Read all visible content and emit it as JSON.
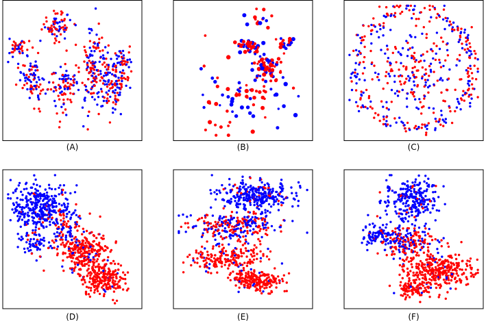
{
  "colors": {
    "series_a": "#ff0000",
    "series_b": "#0000ff"
  },
  "chart_data": [
    {
      "type": "scatter",
      "panel": "(A)",
      "caption": "(A)",
      "title": "",
      "xlabel": "",
      "ylabel": "",
      "grid": false,
      "axes_ticks": false,
      "xlim": [
        0,
        100
      ],
      "ylim": [
        0,
        100
      ],
      "layout": "clusters",
      "clusters": [
        {
          "cx": 38,
          "cy": 84,
          "rx": 10,
          "ry": 10,
          "n": 70,
          "mix": 0.55
        },
        {
          "cx": 8,
          "cy": 67,
          "rx": 7,
          "ry": 5,
          "n": 35,
          "mix": 0.5
        },
        {
          "cx": 20,
          "cy": 45,
          "rx": 10,
          "ry": 18,
          "n": 90,
          "mix": 0.5
        },
        {
          "cx": 42,
          "cy": 36,
          "rx": 9,
          "ry": 20,
          "n": 80,
          "mix": 0.5
        },
        {
          "cx": 66,
          "cy": 50,
          "rx": 13,
          "ry": 27,
          "n": 170,
          "mix": 0.5
        },
        {
          "cx": 82,
          "cy": 40,
          "rx": 8,
          "ry": 20,
          "n": 90,
          "mix": 0.5
        },
        {
          "cx": 88,
          "cy": 58,
          "rx": 6,
          "ry": 10,
          "n": 40,
          "mix": 0.5
        }
      ]
    },
    {
      "type": "scatter",
      "panel": "(B)",
      "caption": "(B)",
      "title": "",
      "xlabel": "",
      "ylabel": "",
      "grid": false,
      "axes_ticks": false,
      "xlim": [
        0,
        100
      ],
      "ylim": [
        0,
        100
      ],
      "layout": "clusters",
      "clusters": [
        {
          "cx": 68,
          "cy": 52,
          "rx": 11,
          "ry": 9,
          "n": 70,
          "mix": 0.6
        },
        {
          "cx": 55,
          "cy": 68,
          "rx": 9,
          "ry": 5,
          "n": 40,
          "mix": 0.6
        },
        {
          "cx": 82,
          "cy": 70,
          "rx": 8,
          "ry": 4,
          "n": 20,
          "mix": 0.6
        },
        {
          "cx": 50,
          "cy": 30,
          "rx": 34,
          "ry": 24,
          "n": 75,
          "mix": 0.55
        },
        {
          "cx": 60,
          "cy": 88,
          "rx": 10,
          "ry": 6,
          "n": 15,
          "mix": 0.6
        }
      ]
    },
    {
      "type": "scatter",
      "panel": "(C)",
      "caption": "(C)",
      "title": "",
      "xlabel": "",
      "ylabel": "",
      "grid": false,
      "axes_ticks": false,
      "xlim": [
        0,
        100
      ],
      "ylim": [
        0,
        100
      ],
      "layout": "ring",
      "ring": {
        "cx": 50,
        "cy": 52,
        "r": 45,
        "thickness": 3,
        "n": 260,
        "mix": 0.5
      },
      "clusters": [
        {
          "cx": 50,
          "cy": 48,
          "rx": 32,
          "ry": 32,
          "n": 230,
          "mix": 0.55
        }
      ]
    },
    {
      "type": "scatter",
      "panel": "(D)",
      "caption": "(D)",
      "title": "",
      "xlabel": "",
      "ylabel": "",
      "grid": false,
      "axes_ticks": false,
      "xlim": [
        0,
        100
      ],
      "ylim": [
        0,
        100
      ],
      "layout": "clusters",
      "clusters": [
        {
          "cx": 26,
          "cy": 74,
          "rx": 20,
          "ry": 18,
          "n": 360,
          "mix": 0.08
        },
        {
          "cx": 22,
          "cy": 46,
          "rx": 11,
          "ry": 8,
          "n": 60,
          "mix": 0.1
        },
        {
          "cx": 60,
          "cy": 40,
          "rx": 17,
          "ry": 15,
          "n": 260,
          "mix": 0.9
        },
        {
          "cx": 74,
          "cy": 20,
          "rx": 14,
          "ry": 12,
          "n": 220,
          "mix": 0.95
        },
        {
          "cx": 46,
          "cy": 56,
          "rx": 10,
          "ry": 14,
          "n": 90,
          "mix": 0.55
        }
      ]
    },
    {
      "type": "scatter",
      "panel": "(E)",
      "caption": "(E)",
      "title": "",
      "xlabel": "",
      "ylabel": "",
      "grid": false,
      "axes_ticks": false,
      "xlim": [
        0,
        100
      ],
      "ylim": [
        0,
        100
      ],
      "layout": "clusters",
      "clusters": [
        {
          "cx": 60,
          "cy": 84,
          "rx": 26,
          "ry": 9,
          "n": 300,
          "mix": 0.1
        },
        {
          "cx": 44,
          "cy": 60,
          "rx": 32,
          "ry": 10,
          "n": 280,
          "mix": 0.5
        },
        {
          "cx": 38,
          "cy": 36,
          "rx": 26,
          "ry": 10,
          "n": 200,
          "mix": 0.85
        },
        {
          "cx": 60,
          "cy": 18,
          "rx": 18,
          "ry": 8,
          "n": 200,
          "mix": 0.95
        }
      ]
    },
    {
      "type": "scatter",
      "panel": "(F)",
      "caption": "(F)",
      "title": "",
      "xlabel": "",
      "ylabel": "",
      "grid": false,
      "axes_ticks": false,
      "xlim": [
        0,
        100
      ],
      "ylim": [
        0,
        100
      ],
      "layout": "clusters",
      "clusters": [
        {
          "cx": 48,
          "cy": 80,
          "rx": 18,
          "ry": 14,
          "n": 260,
          "mix": 0.08
        },
        {
          "cx": 22,
          "cy": 54,
          "rx": 12,
          "ry": 8,
          "n": 80,
          "mix": 0.1
        },
        {
          "cx": 44,
          "cy": 48,
          "rx": 20,
          "ry": 10,
          "n": 200,
          "mix": 0.5
        },
        {
          "cx": 68,
          "cy": 26,
          "rx": 24,
          "ry": 12,
          "n": 330,
          "mix": 0.95
        },
        {
          "cx": 50,
          "cy": 12,
          "rx": 14,
          "ry": 6,
          "n": 90,
          "mix": 0.95
        }
      ]
    }
  ]
}
